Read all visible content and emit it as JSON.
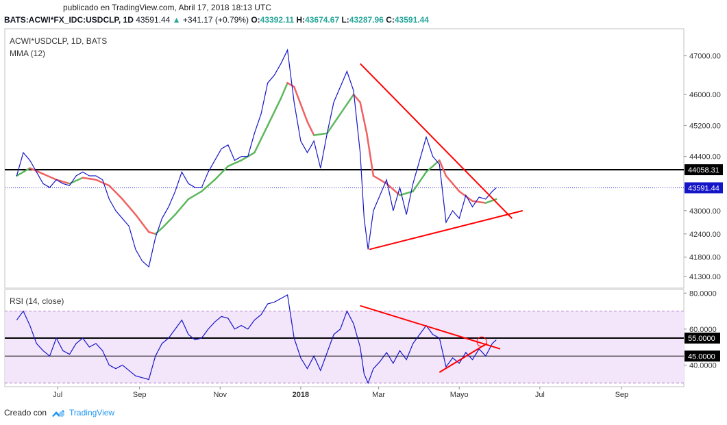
{
  "header": {
    "published": "publicado en TradingView.com, Abril 17, 2018 18:13 UTC",
    "symbol": "BATS:ACWI*FX_IDC:USDCLP, 1D",
    "last": "43591.44",
    "change_arrow": "▲",
    "change": "+341.17 (+0.79%)",
    "o_label": "O:",
    "o_value": "43392.11",
    "h_label": "H:",
    "h_value": "43674.67",
    "l_label": "L:",
    "l_value": "43287.96",
    "c_label": "C:",
    "c_value": "43591.44"
  },
  "footer": {
    "created_with": "Creado con",
    "brand": "TradingView",
    "brand_icon": "tradingview-cloud-icon"
  },
  "colors": {
    "price": "#1515c8",
    "mma_up": "#5cb85c",
    "mma_down": "#f06060",
    "trend": "#ff0000",
    "rsi_band": "#f3e5fa",
    "level": "#000000",
    "last_line": "#1515c8"
  },
  "chart_data": [
    {
      "type": "line",
      "title": "ACWI*USDCLP, 1D, BATS",
      "indicator_label": "MMA (12)",
      "y_ticks": [
        47000,
        46000,
        45200,
        44400,
        43000,
        42400,
        41800,
        41300
      ],
      "y_tick_labels": [
        "47000.00",
        "46000.00",
        "45200.00",
        "44400.00",
        "43000.00",
        "42400.00",
        "41800.00",
        "41300.00"
      ],
      "ylim": [
        41000,
        47700
      ],
      "x_tick_labels": [
        "Jul",
        "Sep",
        "Nov",
        "2018",
        "Mar",
        "Mayo",
        "Jul",
        "Sep"
      ],
      "x_tick_days": [
        31,
        93,
        154,
        215,
        274,
        335,
        396,
        458
      ],
      "xlim": [
        -9,
        505
      ],
      "horizontal_level": 44058.31,
      "horizontal_level_label": "44058.31",
      "last_price_label": "43591.44",
      "price_series": [
        {
          "x": 0,
          "y": 43900
        },
        {
          "x": 5,
          "y": 44500
        },
        {
          "x": 10,
          "y": 44300
        },
        {
          "x": 15,
          "y": 44000
        },
        {
          "x": 20,
          "y": 43700
        },
        {
          "x": 25,
          "y": 43600
        },
        {
          "x": 30,
          "y": 43800
        },
        {
          "x": 35,
          "y": 43700
        },
        {
          "x": 40,
          "y": 43650
        },
        {
          "x": 45,
          "y": 43900
        },
        {
          "x": 50,
          "y": 44000
        },
        {
          "x": 55,
          "y": 43900
        },
        {
          "x": 60,
          "y": 43900
        },
        {
          "x": 65,
          "y": 43800
        },
        {
          "x": 70,
          "y": 43300
        },
        {
          "x": 75,
          "y": 43000
        },
        {
          "x": 80,
          "y": 42800
        },
        {
          "x": 85,
          "y": 42600
        },
        {
          "x": 90,
          "y": 42000
        },
        {
          "x": 95,
          "y": 41700
        },
        {
          "x": 100,
          "y": 41550
        },
        {
          "x": 105,
          "y": 42300
        },
        {
          "x": 110,
          "y": 42800
        },
        {
          "x": 115,
          "y": 43100
        },
        {
          "x": 120,
          "y": 43500
        },
        {
          "x": 125,
          "y": 44000
        },
        {
          "x": 130,
          "y": 43700
        },
        {
          "x": 135,
          "y": 43600
        },
        {
          "x": 140,
          "y": 43600
        },
        {
          "x": 145,
          "y": 44000
        },
        {
          "x": 150,
          "y": 44300
        },
        {
          "x": 155,
          "y": 44600
        },
        {
          "x": 160,
          "y": 44700
        },
        {
          "x": 165,
          "y": 44300
        },
        {
          "x": 170,
          "y": 44400
        },
        {
          "x": 175,
          "y": 44400
        },
        {
          "x": 180,
          "y": 45000
        },
        {
          "x": 185,
          "y": 45500
        },
        {
          "x": 190,
          "y": 46300
        },
        {
          "x": 195,
          "y": 46500
        },
        {
          "x": 200,
          "y": 46800
        },
        {
          "x": 205,
          "y": 47150
        },
        {
          "x": 210,
          "y": 45800
        },
        {
          "x": 215,
          "y": 44800
        },
        {
          "x": 220,
          "y": 44500
        },
        {
          "x": 225,
          "y": 44800
        },
        {
          "x": 230,
          "y": 44100
        },
        {
          "x": 235,
          "y": 45000
        },
        {
          "x": 240,
          "y": 45800
        },
        {
          "x": 245,
          "y": 46200
        },
        {
          "x": 250,
          "y": 46600
        },
        {
          "x": 255,
          "y": 46100
        },
        {
          "x": 260,
          "y": 44500
        },
        {
          "x": 263,
          "y": 42800
        },
        {
          "x": 266,
          "y": 42000
        },
        {
          "x": 270,
          "y": 43000
        },
        {
          "x": 275,
          "y": 43400
        },
        {
          "x": 280,
          "y": 43800
        },
        {
          "x": 285,
          "y": 43000
        },
        {
          "x": 290,
          "y": 43600
        },
        {
          "x": 295,
          "y": 42900
        },
        {
          "x": 300,
          "y": 43700
        },
        {
          "x": 305,
          "y": 44300
        },
        {
          "x": 310,
          "y": 44900
        },
        {
          "x": 315,
          "y": 44400
        },
        {
          "x": 320,
          "y": 44200
        },
        {
          "x": 325,
          "y": 42700
        },
        {
          "x": 330,
          "y": 43000
        },
        {
          "x": 335,
          "y": 42800
        },
        {
          "x": 340,
          "y": 43400
        },
        {
          "x": 345,
          "y": 43100
        },
        {
          "x": 350,
          "y": 43350
        },
        {
          "x": 355,
          "y": 43300
        },
        {
          "x": 360,
          "y": 43500
        },
        {
          "x": 363,
          "y": 43591
        }
      ],
      "mma_series": [
        {
          "x": 0,
          "y": 43900
        },
        {
          "x": 10,
          "y": 44100
        },
        {
          "x": 20,
          "y": 43950
        },
        {
          "x": 30,
          "y": 43800
        },
        {
          "x": 40,
          "y": 43700
        },
        {
          "x": 50,
          "y": 43850
        },
        {
          "x": 60,
          "y": 43800
        },
        {
          "x": 70,
          "y": 43650
        },
        {
          "x": 80,
          "y": 43300
        },
        {
          "x": 90,
          "y": 42900
        },
        {
          "x": 100,
          "y": 42450
        },
        {
          "x": 105,
          "y": 42400
        },
        {
          "x": 110,
          "y": 42550
        },
        {
          "x": 120,
          "y": 42900
        },
        {
          "x": 130,
          "y": 43300
        },
        {
          "x": 140,
          "y": 43500
        },
        {
          "x": 150,
          "y": 43800
        },
        {
          "x": 160,
          "y": 44150
        },
        {
          "x": 170,
          "y": 44300
        },
        {
          "x": 180,
          "y": 44500
        },
        {
          "x": 190,
          "y": 45200
        },
        {
          "x": 200,
          "y": 45900
        },
        {
          "x": 205,
          "y": 46300
        },
        {
          "x": 210,
          "y": 46200
        },
        {
          "x": 220,
          "y": 45300
        },
        {
          "x": 225,
          "y": 44950
        },
        {
          "x": 235,
          "y": 45000
        },
        {
          "x": 245,
          "y": 45500
        },
        {
          "x": 255,
          "y": 46000
        },
        {
          "x": 260,
          "y": 45800
        },
        {
          "x": 265,
          "y": 45000
        },
        {
          "x": 270,
          "y": 43900
        },
        {
          "x": 280,
          "y": 43700
        },
        {
          "x": 290,
          "y": 43400
        },
        {
          "x": 300,
          "y": 43500
        },
        {
          "x": 310,
          "y": 44000
        },
        {
          "x": 320,
          "y": 44300
        },
        {
          "x": 325,
          "y": 43900
        },
        {
          "x": 335,
          "y": 43500
        },
        {
          "x": 345,
          "y": 43250
        },
        {
          "x": 355,
          "y": 43200
        },
        {
          "x": 363,
          "y": 43300
        }
      ],
      "trendlines": [
        {
          "from": {
            "x": 260,
            "y": 46800
          },
          "to": {
            "x": 375,
            "y": 42800
          }
        },
        {
          "from": {
            "x": 267,
            "y": 42000
          },
          "to": {
            "x": 383,
            "y": 43000
          }
        }
      ]
    },
    {
      "type": "line",
      "title": "RSI (14, close)",
      "y_ticks": [
        80,
        60,
        40
      ],
      "y_tick_labels": [
        "80.0000",
        "60.0000",
        "40.0000"
      ],
      "ylim": [
        28,
        82
      ],
      "band": [
        30,
        70
      ],
      "levels": [
        55,
        45
      ],
      "level_labels": [
        "55.0000",
        "45.0000"
      ],
      "rsi_series": [
        {
          "x": 0,
          "y": 65
        },
        {
          "x": 5,
          "y": 70
        },
        {
          "x": 10,
          "y": 62
        },
        {
          "x": 15,
          "y": 52
        },
        {
          "x": 20,
          "y": 48
        },
        {
          "x": 25,
          "y": 45
        },
        {
          "x": 30,
          "y": 55
        },
        {
          "x": 35,
          "y": 48
        },
        {
          "x": 40,
          "y": 46
        },
        {
          "x": 45,
          "y": 52
        },
        {
          "x": 50,
          "y": 55
        },
        {
          "x": 55,
          "y": 50
        },
        {
          "x": 60,
          "y": 52
        },
        {
          "x": 65,
          "y": 48
        },
        {
          "x": 70,
          "y": 40
        },
        {
          "x": 75,
          "y": 38
        },
        {
          "x": 80,
          "y": 40
        },
        {
          "x": 85,
          "y": 37
        },
        {
          "x": 90,
          "y": 34
        },
        {
          "x": 95,
          "y": 33
        },
        {
          "x": 100,
          "y": 32
        },
        {
          "x": 105,
          "y": 45
        },
        {
          "x": 110,
          "y": 52
        },
        {
          "x": 115,
          "y": 55
        },
        {
          "x": 120,
          "y": 60
        },
        {
          "x": 125,
          "y": 65
        },
        {
          "x": 130,
          "y": 57
        },
        {
          "x": 135,
          "y": 54
        },
        {
          "x": 140,
          "y": 55
        },
        {
          "x": 145,
          "y": 60
        },
        {
          "x": 150,
          "y": 64
        },
        {
          "x": 155,
          "y": 67
        },
        {
          "x": 160,
          "y": 66
        },
        {
          "x": 165,
          "y": 60
        },
        {
          "x": 170,
          "y": 62
        },
        {
          "x": 175,
          "y": 60
        },
        {
          "x": 180,
          "y": 65
        },
        {
          "x": 185,
          "y": 68
        },
        {
          "x": 190,
          "y": 74
        },
        {
          "x": 195,
          "y": 75
        },
        {
          "x": 200,
          "y": 77
        },
        {
          "x": 205,
          "y": 79
        },
        {
          "x": 210,
          "y": 55
        },
        {
          "x": 215,
          "y": 44
        },
        {
          "x": 220,
          "y": 38
        },
        {
          "x": 225,
          "y": 45
        },
        {
          "x": 230,
          "y": 37
        },
        {
          "x": 235,
          "y": 47
        },
        {
          "x": 240,
          "y": 57
        },
        {
          "x": 245,
          "y": 60
        },
        {
          "x": 250,
          "y": 70
        },
        {
          "x": 255,
          "y": 63
        },
        {
          "x": 260,
          "y": 50
        },
        {
          "x": 263,
          "y": 35
        },
        {
          "x": 266,
          "y": 30
        },
        {
          "x": 270,
          "y": 38
        },
        {
          "x": 275,
          "y": 42
        },
        {
          "x": 280,
          "y": 47
        },
        {
          "x": 285,
          "y": 41
        },
        {
          "x": 290,
          "y": 48
        },
        {
          "x": 295,
          "y": 43
        },
        {
          "x": 300,
          "y": 52
        },
        {
          "x": 305,
          "y": 57
        },
        {
          "x": 310,
          "y": 62
        },
        {
          "x": 315,
          "y": 57
        },
        {
          "x": 320,
          "y": 55
        },
        {
          "x": 325,
          "y": 39
        },
        {
          "x": 330,
          "y": 44
        },
        {
          "x": 335,
          "y": 41
        },
        {
          "x": 340,
          "y": 47
        },
        {
          "x": 345,
          "y": 43
        },
        {
          "x": 350,
          "y": 49
        },
        {
          "x": 355,
          "y": 45
        },
        {
          "x": 360,
          "y": 52
        },
        {
          "x": 363,
          "y": 54
        }
      ],
      "trendlines": [
        {
          "from": {
            "x": 260,
            "y": 73
          },
          "to": {
            "x": 366,
            "y": 49
          }
        },
        {
          "from": {
            "x": 320,
            "y": 36
          },
          "to": {
            "x": 356,
            "y": 52
          }
        }
      ],
      "highlight_circle": {
        "x": 352,
        "y": 53
      }
    }
  ]
}
